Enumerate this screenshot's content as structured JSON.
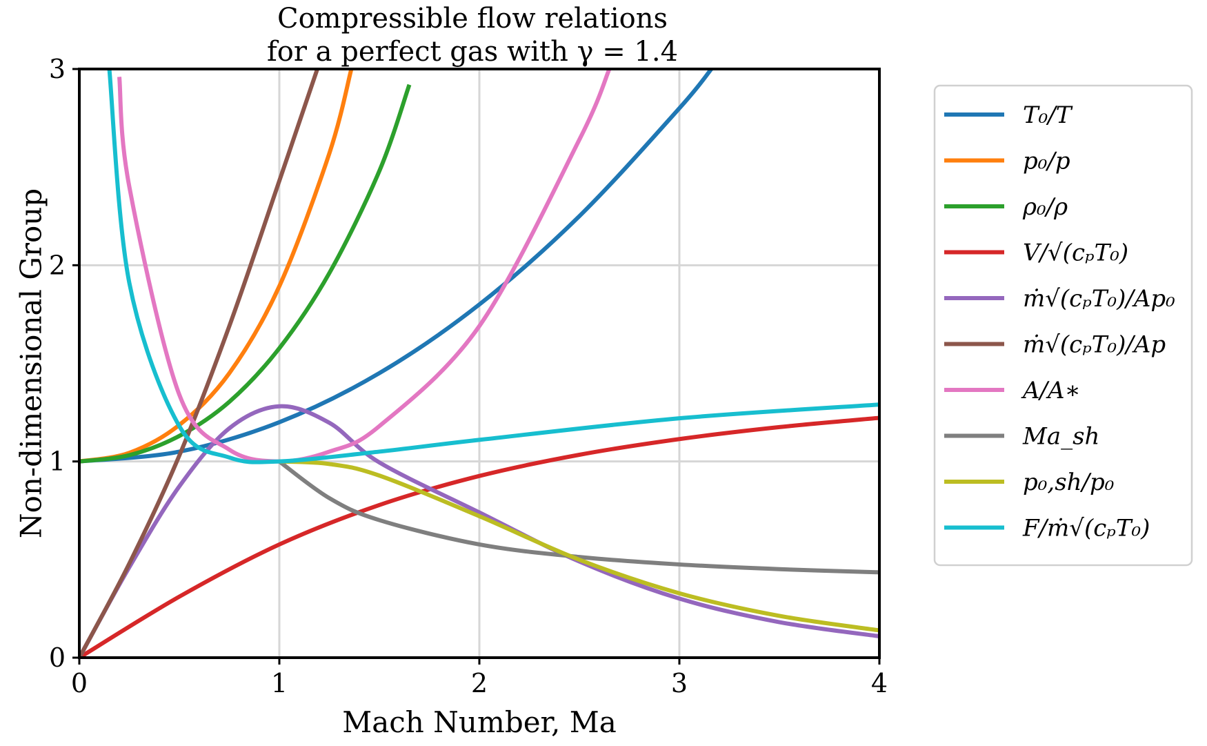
{
  "chart_data": {
    "type": "line",
    "title_lines": [
      "Compressible flow relations",
      "for a perfect gas with γ = 1.4"
    ],
    "xlabel": "Mach Number, Ma",
    "ylabel": "Non-dimensional Group",
    "xlim": [
      0,
      4
    ],
    "ylim": [
      0,
      3
    ],
    "xticks": [
      0,
      1,
      2,
      3,
      4
    ],
    "yticks": [
      0,
      1,
      2,
      3
    ],
    "xtick_labels": [
      "0",
      "1",
      "2",
      "3",
      "4"
    ],
    "ytick_labels": [
      "0",
      "1",
      "2",
      "3"
    ],
    "grid": true,
    "legend_position": "outside-right",
    "gamma": 1.4,
    "series": [
      {
        "name": "T₀/T",
        "color": "#1f77b4",
        "x": [
          0,
          0.5,
          1,
          1.5,
          2,
          2.5,
          3,
          3.16
        ],
        "y": [
          1.0,
          1.05,
          1.2,
          1.45,
          1.8,
          2.25,
          2.8,
          3.0
        ]
      },
      {
        "name": "p₀/p",
        "color": "#ff7f0e",
        "x": [
          0,
          0.25,
          0.5,
          0.75,
          1.0,
          1.25,
          1.36
        ],
        "y": [
          1.0,
          1.044,
          1.186,
          1.45,
          1.893,
          2.57,
          3.0
        ]
      },
      {
        "name": "ρ₀/ρ",
        "color": "#2ca02c",
        "x": [
          0,
          0.25,
          0.5,
          0.75,
          1.0,
          1.25,
          1.5,
          1.65
        ],
        "y": [
          1.0,
          1.032,
          1.13,
          1.304,
          1.577,
          1.96,
          2.48,
          2.92
        ]
      },
      {
        "name": "V/√(cₚT₀)",
        "color": "#d62728",
        "x": [
          0,
          0.5,
          1,
          1.5,
          2,
          2.5,
          3,
          3.5,
          4
        ],
        "y": [
          0,
          0.311,
          0.577,
          0.778,
          0.926,
          1.034,
          1.114,
          1.175,
          1.222
        ]
      },
      {
        "name": "ṁ√(cₚT₀)/Ap₀",
        "color": "#9467bd",
        "x": [
          0,
          0.25,
          0.5,
          0.75,
          1.0,
          1.25,
          1.5,
          2,
          2.5,
          3,
          3.5,
          4
        ],
        "y": [
          0,
          0.461,
          0.873,
          1.169,
          1.281,
          1.197,
          0.995,
          0.74,
          0.49,
          0.301,
          0.181,
          0.109
        ]
      },
      {
        "name": "ṁ√(cₚT₀)/Ap",
        "color": "#8c564b",
        "x": [
          0,
          0.25,
          0.5,
          0.75,
          1.0,
          1.19
        ],
        "y": [
          0,
          0.48,
          1.03,
          1.69,
          2.43,
          3.0
        ]
      },
      {
        "name": "A/A∗",
        "color": "#e377c2",
        "x": [
          0.2,
          0.25,
          0.5,
          0.75,
          1.0,
          1.25,
          1.5,
          2,
          2.5,
          2.65
        ],
        "y": [
          2.96,
          2.4,
          1.34,
          1.06,
          1.0,
          1.05,
          1.18,
          1.69,
          2.64,
          3.0
        ]
      },
      {
        "name": "Ma_sh",
        "color": "#7f7f7f",
        "x": [
          1.0,
          1.25,
          1.5,
          2,
          2.5,
          3,
          3.5,
          4
        ],
        "y": [
          1.0,
          0.813,
          0.701,
          0.577,
          0.513,
          0.475,
          0.451,
          0.435
        ]
      },
      {
        "name": "p₀,sh/p₀",
        "color": "#bcbd22",
        "x": [
          1.0,
          1.25,
          1.5,
          2,
          2.5,
          3,
          3.5,
          4
        ],
        "y": [
          1.0,
          0.987,
          0.928,
          0.721,
          0.499,
          0.328,
          0.213,
          0.139
        ]
      },
      {
        "name": "F/ṁ√(cₚT₀)",
        "color": "#17becf",
        "x": [
          0.15,
          0.25,
          0.5,
          0.75,
          1.0,
          1.5,
          2,
          3,
          4
        ],
        "y": [
          3.0,
          1.91,
          1.18,
          1.02,
          1.0,
          1.05,
          1.11,
          1.22,
          1.29
        ]
      }
    ]
  }
}
